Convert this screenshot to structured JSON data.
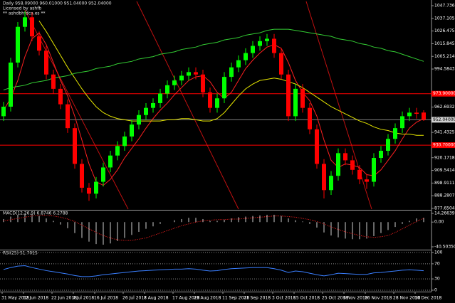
{
  "chart_data": [
    {
      "type": "candlestick",
      "title": "Daily 958.09000 960.01000 951.04000 952.04000",
      "subtitle": "Licensed by ashfb",
      "annotation": "** ashdbhfdca.es **",
      "categories": [
        null,
        "31 May 2018",
        null,
        null,
        "12 Jun 2018",
        null,
        null,
        null,
        "22 Jun 2018",
        null,
        null,
        "4 Jul 2018",
        null,
        null,
        "16 Jul 2018",
        null,
        null,
        null,
        "26 Jul 2018",
        null,
        null,
        "7 Aug 2018",
        null,
        null,
        null,
        "17 Aug 2018",
        null,
        null,
        "29 Aug 2018",
        null,
        null,
        null,
        "11 Sep 2018",
        null,
        null,
        "21 Sep 2018",
        null,
        null,
        null,
        "3 Oct 2018",
        null,
        null,
        "15 Oct 2018",
        null,
        null,
        null,
        "25 Oct 2018",
        null,
        null,
        "6 Nov 2018",
        null,
        null,
        "16 Nov 2018",
        null,
        null,
        null,
        "28 Nov 2018",
        null,
        null,
        "10 Dec 2018"
      ],
      "open": [
        955,
        963,
        1000,
        1030,
        1038,
        1022,
        1010,
        990,
        978,
        965,
        945,
        915,
        895,
        890,
        900,
        912,
        922,
        930,
        938,
        948,
        956,
        962,
        966,
        974,
        981,
        985,
        989,
        992,
        990,
        975,
        962,
        970,
        988,
        996,
        1002,
        1008,
        1014,
        1018,
        1020,
        1008,
        990,
        955,
        978,
        962,
        944,
        915,
        893,
        905,
        924,
        918,
        910,
        902,
        900,
        920,
        926,
        936,
        945,
        955,
        958,
        958.09
      ],
      "high": [
        967,
        1004,
        1034,
        1043,
        1042,
        1026,
        1014,
        994,
        982,
        969,
        949,
        919,
        899,
        904,
        916,
        926,
        934,
        942,
        952,
        960,
        966,
        970,
        978,
        985,
        989,
        993,
        996,
        996,
        994,
        979,
        974,
        992,
        1000,
        1006,
        1012,
        1018,
        1022,
        1024,
        1024,
        1012,
        994,
        982,
        982,
        966,
        948,
        919,
        909,
        928,
        928,
        922,
        914,
        906,
        924,
        930,
        940,
        949,
        959,
        962,
        962,
        960.01
      ],
      "low": [
        951,
        959,
        996,
        1026,
        1018,
        1006,
        986,
        974,
        961,
        941,
        911,
        891,
        884,
        886,
        896,
        908,
        918,
        926,
        934,
        944,
        952,
        958,
        962,
        970,
        977,
        981,
        985,
        986,
        971,
        958,
        958,
        966,
        984,
        992,
        998,
        1004,
        1010,
        1014,
        1004,
        986,
        951,
        951,
        958,
        940,
        911,
        886,
        889,
        901,
        914,
        906,
        898,
        894,
        896,
        916,
        922,
        932,
        941,
        951,
        953,
        951.04
      ],
      "close": [
        963,
        1000,
        1030,
        1038,
        1022,
        1010,
        990,
        978,
        965,
        945,
        915,
        895,
        890,
        900,
        912,
        922,
        930,
        938,
        948,
        956,
        962,
        966,
        974,
        981,
        985,
        989,
        992,
        990,
        975,
        962,
        970,
        988,
        996,
        1002,
        1008,
        1014,
        1018,
        1020,
        1008,
        990,
        955,
        978,
        962,
        944,
        915,
        893,
        905,
        924,
        918,
        910,
        902,
        900,
        920,
        926,
        936,
        945,
        955,
        958,
        957,
        952.04
      ],
      "up_color": "#00ff00",
      "down_color": "#ff0000",
      "series": [
        {
          "color": "#ff2020",
          "values": [
            960,
            970,
            985,
            1005,
            1020,
            1025,
            1015,
            1000,
            985,
            972,
            955,
            935,
            915,
            900,
            897,
            902,
            910,
            920,
            928,
            936,
            945,
            953,
            960,
            966,
            973,
            979,
            985,
            988,
            989,
            984,
            975,
            970,
            975,
            985,
            995,
            1002,
            1008,
            1013,
            1015,
            1012,
            1000,
            985,
            975,
            968,
            955,
            935,
            918,
            912,
            915,
            914,
            912,
            906,
            905,
            910,
            918,
            926,
            936,
            945,
            950,
            953
          ]
        },
        {
          "color": "#e6e600",
          "values": [
            null,
            null,
            null,
            null,
            null,
            1035,
            1026,
            1016,
            1006,
            996,
            987,
            978,
            970,
            963,
            958,
            955,
            953,
            952,
            951,
            951,
            951,
            951,
            951,
            952,
            952,
            953,
            953,
            952,
            951,
            951,
            953,
            958,
            965,
            972,
            978,
            982,
            985,
            986,
            987,
            986,
            984,
            982,
            979,
            975,
            971,
            967,
            963,
            960,
            957,
            954,
            951,
            949,
            946,
            944,
            943,
            941,
            940,
            940,
            939,
            939
          ]
        },
        {
          "color": "#33cc33",
          "values": [
            977,
            979,
            980,
            981,
            983,
            984,
            985,
            987,
            988,
            989,
            991,
            992,
            993,
            995,
            996,
            997,
            999,
            1000,
            1001,
            1003,
            1004,
            1005,
            1007,
            1008,
            1009,
            1011,
            1012,
            1013,
            1015,
            1016,
            1017,
            1019,
            1020,
            1021,
            1023,
            1024,
            1025,
            1027,
            1028,
            1028,
            1028,
            1027,
            1026,
            1025,
            1024,
            1023,
            1022,
            1020,
            1019,
            1018,
            1016,
            1015,
            1013,
            1012,
            1010,
            1009,
            1007,
            1005,
            1003,
            1001
          ]
        }
      ],
      "ylim": [
        877.6504,
        1047.736
      ],
      "yticks": [
        {
          "value": 1047.736,
          "label": "1047.73600"
        },
        {
          "value": 1037.1057,
          "label": "1037.10570"
        },
        {
          "value": 1026.4753,
          "label": "1026.47530"
        },
        {
          "value": 1015.845,
          "label": "1015.84500"
        },
        {
          "value": 1005.2146,
          "label": "1005.21460"
        },
        {
          "value": 994.5843,
          "label": "994.58430"
        },
        {
          "value": 973.3236,
          "label": "973.32360"
        },
        {
          "value": 962.6932,
          "label": "962.69320"
        },
        {
          "value": 941.4325,
          "label": "941.43250"
        },
        {
          "value": 920.1718,
          "label": "920.17180"
        },
        {
          "value": 909.5414,
          "label": "909.54140"
        },
        {
          "value": 898.9111,
          "label": "898.91110"
        },
        {
          "value": 888.2807,
          "label": "888.28070"
        },
        {
          "value": 877.6504,
          "label": "877.65040"
        }
      ],
      "hlines": [
        {
          "value": 973.9,
          "label": "973.90000",
          "color": "#ff0000"
        },
        {
          "value": 930.7,
          "label": "930.70000",
          "color": "#ff0000"
        }
      ],
      "current": {
        "value": 952.04,
        "label": "952.04000",
        "color": "#808080"
      }
    },
    {
      "type": "macd",
      "title": "MACD(12,26,9) 6.8746 6.2788",
      "color": "#d0d0d0",
      "values": [
        5,
        9,
        12,
        14,
        13,
        10,
        6,
        2,
        -4,
        -10,
        -18,
        -26,
        -32,
        -36,
        -37,
        -35,
        -31,
        -26,
        -21,
        -16,
        -11,
        -7,
        -3,
        0,
        3,
        5,
        7,
        7,
        5,
        2,
        2,
        4,
        6,
        8,
        9,
        10,
        11,
        12,
        12,
        10,
        6,
        3,
        1,
        -3,
        -9,
        -17,
        -22,
        -25,
        -27,
        -28,
        -28,
        -27,
        -23,
        -18,
        -13,
        -8,
        -3,
        2,
        6,
        6.8746
      ],
      "series": [
        {
          "color": "#ff2020",
          "values": [
            2,
            4,
            6,
            8,
            10,
            11,
            11,
            10,
            8,
            5,
            1,
            -5,
            -11,
            -17,
            -22,
            -26,
            -29,
            -30,
            -30,
            -28,
            -26,
            -22,
            -18,
            -14,
            -10,
            -6,
            -3,
            0,
            2,
            3,
            4,
            4,
            5,
            5,
            6,
            7,
            8,
            9,
            10,
            10,
            9,
            8,
            6,
            4,
            1,
            -3,
            -8,
            -12,
            -16,
            -19,
            -22,
            -24,
            -25,
            -24,
            -22,
            -17,
            -11,
            -5,
            1,
            6.2788
          ]
        }
      ],
      "ylim": [
        -40.5035,
        14.26639
      ],
      "yticks": [
        14.26639,
        {
          "value": 0,
          "label": "0.00"
        },
        {
          "value": -40.5035,
          "label": "-40.50350"
        }
      ]
    },
    {
      "type": "rsi",
      "title": "RSI(25) 51.7015",
      "color": "#3a7fff",
      "values": [
        55,
        60,
        64,
        65,
        60,
        56,
        52,
        49,
        46,
        43,
        39,
        36,
        36,
        38,
        41,
        43,
        45,
        47,
        49,
        51,
        52,
        53,
        54,
        55,
        56,
        56,
        57,
        56,
        53,
        51,
        52,
        55,
        57,
        58,
        59,
        60,
        60,
        60,
        57,
        53,
        47,
        51,
        49,
        45,
        41,
        38,
        41,
        45,
        44,
        43,
        42,
        42,
        46,
        47,
        49,
        51,
        53,
        54,
        53,
        51.7015
      ],
      "ylim": [
        0,
        100
      ],
      "yticks": [
        100,
        70,
        30,
        0
      ]
    }
  ]
}
